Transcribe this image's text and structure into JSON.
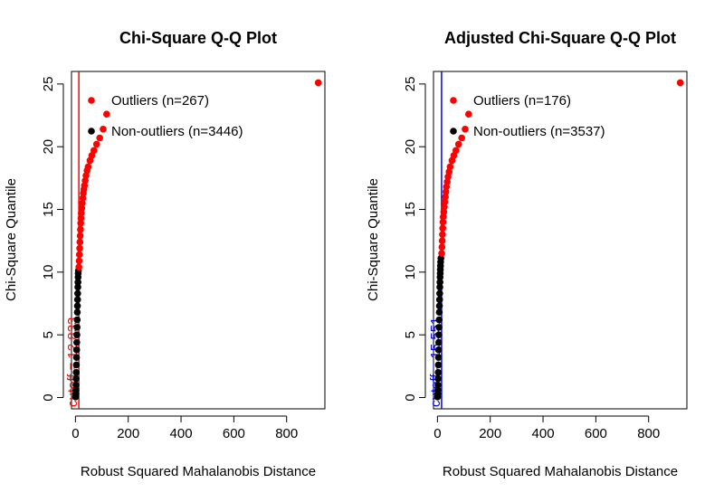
{
  "chart_data": [
    {
      "type": "scatter",
      "title": "Chi-Square Q-Q Plot",
      "xlabel": "Robust Squared Mahalanobis Distance",
      "ylabel": "Chi-Square Quantile",
      "xlim": [
        -15,
        945
      ],
      "ylim": [
        -0.9,
        26.0
      ],
      "xticks": [
        0,
        200,
        400,
        600,
        800
      ],
      "yticks": [
        0,
        5,
        10,
        15,
        20,
        25
      ],
      "cutoff": {
        "value": 12.833,
        "label": "cutoff = 12.833",
        "color": "#ff0000"
      },
      "legend": {
        "position": "top-left",
        "entries": [
          {
            "label": "Outliers (n=267)",
            "color": "#ff0000"
          },
          {
            "label": "Non-outliers (n=3446)",
            "color": "#000000"
          }
        ]
      },
      "series": [
        {
          "name": "Non-outliers",
          "color": "#000000",
          "points": [
            [
              0.5,
              0.05
            ],
            [
              1,
              0.3
            ],
            [
              1.5,
              0.6
            ],
            [
              2,
              1.0
            ],
            [
              2.5,
              1.5
            ],
            [
              3,
              2.0
            ],
            [
              3.5,
              2.6
            ],
            [
              4,
              3.2
            ],
            [
              4.5,
              3.8
            ],
            [
              5,
              4.4
            ],
            [
              5.5,
              5.0
            ],
            [
              6,
              5.6
            ],
            [
              6.5,
              6.2
            ],
            [
              7,
              6.8
            ],
            [
              7.5,
              7.3
            ],
            [
              8,
              7.8
            ],
            [
              8.5,
              8.3
            ],
            [
              9,
              8.8
            ],
            [
              9.5,
              9.2
            ],
            [
              10,
              9.6
            ],
            [
              10.5,
              9.9
            ],
            [
              11,
              10.1
            ]
          ]
        },
        {
          "name": "Outliers",
          "color": "#ff0000",
          "points": [
            [
              13,
              10.4
            ],
            [
              14,
              10.9
            ],
            [
              15,
              11.4
            ],
            [
              16,
              11.9
            ],
            [
              17,
              12.4
            ],
            [
              18,
              12.9
            ],
            [
              19,
              13.4
            ],
            [
              20,
              13.9
            ],
            [
              21,
              14.3
            ],
            [
              22,
              14.7
            ],
            [
              24,
              15.1
            ],
            [
              26,
              15.5
            ],
            [
              28,
              15.9
            ],
            [
              30,
              16.3
            ],
            [
              32,
              16.6
            ],
            [
              34,
              16.9
            ],
            [
              37,
              17.3
            ],
            [
              40,
              17.7
            ],
            [
              44,
              18.1
            ],
            [
              48,
              18.4
            ],
            [
              55,
              18.9
            ],
            [
              62,
              19.3
            ],
            [
              70,
              19.7
            ],
            [
              80,
              20.2
            ],
            [
              92,
              20.7
            ],
            [
              105,
              21.4
            ],
            [
              118,
              22.6
            ],
            [
              920,
              25.1
            ]
          ]
        }
      ]
    },
    {
      "type": "scatter",
      "title": "Adjusted Chi-Square Q-Q Plot",
      "xlabel": "Robust Squared Mahalanobis Distance",
      "ylabel": "Chi-Square Quantile",
      "xlim": [
        -15,
        945
      ],
      "ylim": [
        -0.9,
        26.0
      ],
      "xticks": [
        0,
        200,
        400,
        600,
        800
      ],
      "yticks": [
        0,
        5,
        10,
        15,
        20,
        25
      ],
      "cutoff": {
        "value": 15.551,
        "label": "cutoff = 15.551",
        "color": "#0000ff"
      },
      "legend": {
        "position": "top-left",
        "entries": [
          {
            "label": "Outliers (n=176)",
            "color": "#ff0000"
          },
          {
            "label": "Non-outliers (n=3537)",
            "color": "#000000"
          }
        ]
      },
      "series": [
        {
          "name": "Non-outliers",
          "color": "#000000",
          "points": [
            [
              0.5,
              0.05
            ],
            [
              1,
              0.3
            ],
            [
              1.5,
              0.6
            ],
            [
              2,
              1.0
            ],
            [
              2.5,
              1.5
            ],
            [
              3,
              2.0
            ],
            [
              3.5,
              2.6
            ],
            [
              4,
              3.2
            ],
            [
              4.5,
              3.8
            ],
            [
              5,
              4.4
            ],
            [
              5.5,
              5.0
            ],
            [
              6,
              5.6
            ],
            [
              6.5,
              6.2
            ],
            [
              7,
              6.8
            ],
            [
              7.5,
              7.3
            ],
            [
              8,
              7.8
            ],
            [
              8.5,
              8.3
            ],
            [
              9,
              8.8
            ],
            [
              9.5,
              9.2
            ],
            [
              10,
              9.6
            ],
            [
              10.5,
              9.9
            ],
            [
              11,
              10.2
            ],
            [
              11.5,
              10.5
            ],
            [
              12,
              10.8
            ],
            [
              13,
              11.1
            ]
          ]
        },
        {
          "name": "Outliers",
          "color": "#ff0000",
          "points": [
            [
              16,
              11.5
            ],
            [
              17,
              12.0
            ],
            [
              18,
              12.5
            ],
            [
              19,
              13.0
            ],
            [
              20,
              13.5
            ],
            [
              21,
              14.0
            ],
            [
              22,
              14.4
            ],
            [
              24,
              14.8
            ],
            [
              26,
              15.2
            ],
            [
              28,
              15.6
            ],
            [
              30,
              16.0
            ],
            [
              32,
              16.4
            ],
            [
              34,
              16.8
            ],
            [
              37,
              17.2
            ],
            [
              40,
              17.6
            ],
            [
              44,
              18.0
            ],
            [
              48,
              18.4
            ],
            [
              55,
              18.9
            ],
            [
              62,
              19.3
            ],
            [
              70,
              19.7
            ],
            [
              80,
              20.2
            ],
            [
              92,
              20.7
            ],
            [
              105,
              21.4
            ],
            [
              118,
              22.6
            ],
            [
              920,
              25.1
            ]
          ]
        }
      ]
    }
  ]
}
